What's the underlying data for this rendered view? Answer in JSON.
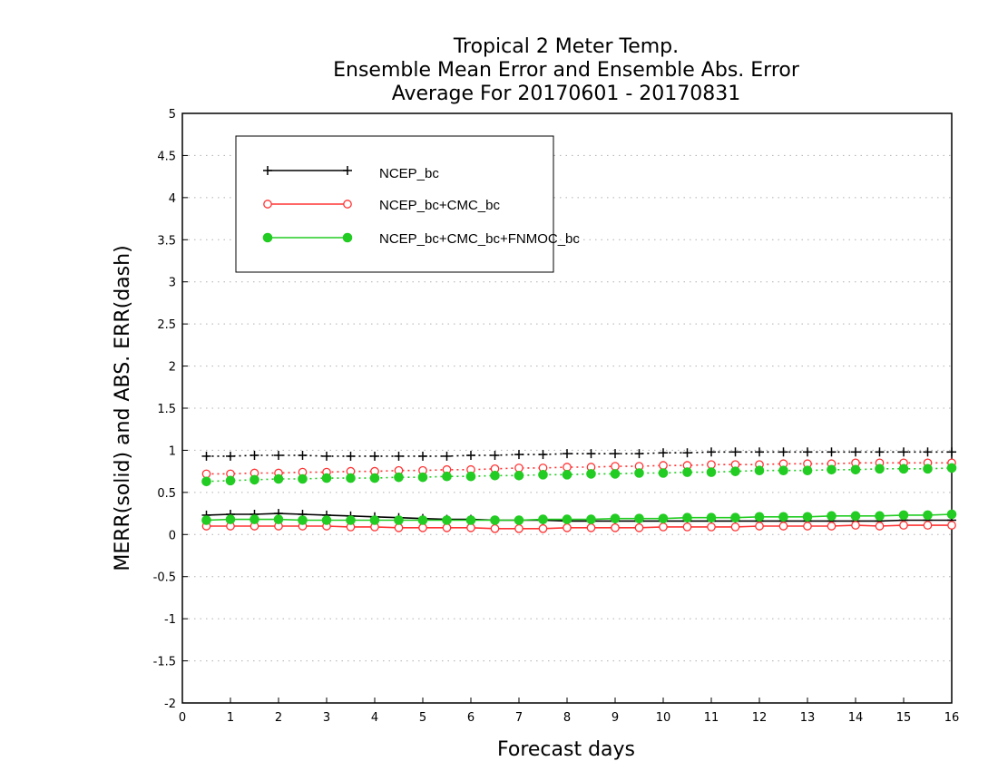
{
  "chart_data": {
    "type": "line",
    "title_lines": [
      "Tropical 2 Meter Temp.",
      "Ensemble Mean Error and Ensemble Abs. Error",
      "Average For 20170601 - 20170831"
    ],
    "xlabel": "Forecast days",
    "ylabel": "MERR(solid) and ABS. ERR(dash)",
    "xlim": [
      0,
      16
    ],
    "ylim": [
      -2,
      5
    ],
    "x_ticks": [
      "0",
      "1",
      "2",
      "3",
      "4",
      "5",
      "6",
      "7",
      "8",
      "9",
      "10",
      "11",
      "12",
      "13",
      "14",
      "15",
      "16"
    ],
    "y_ticks": [
      "-2",
      "-1.5",
      "-1",
      "-0.5",
      "0",
      "0.5",
      "1",
      "1.5",
      "2",
      "2.5",
      "3",
      "3.5",
      "4",
      "4.5",
      "5"
    ],
    "y_tick_values": [
      -2,
      -1.5,
      -1,
      -0.5,
      0,
      0.5,
      1,
      1.5,
      2,
      2.5,
      3,
      3.5,
      4,
      4.5,
      5
    ],
    "grid": true,
    "legend_position": "top-left",
    "x": [
      0.5,
      1,
      1.5,
      2,
      2.5,
      3,
      3.5,
      4,
      4.5,
      5,
      5.5,
      6,
      6.5,
      7,
      7.5,
      8,
      8.5,
      9,
      9.5,
      10,
      10.5,
      11,
      11.5,
      12,
      12.5,
      13,
      13.5,
      14,
      14.5,
      15,
      15.5,
      16
    ],
    "series": [
      {
        "name": "NCEP_bc",
        "color": "#000000",
        "marker": "plus",
        "merr": [
          0.23,
          0.24,
          0.24,
          0.25,
          0.24,
          0.23,
          0.22,
          0.21,
          0.2,
          0.19,
          0.18,
          0.18,
          0.17,
          0.17,
          0.17,
          0.16,
          0.16,
          0.16,
          0.16,
          0.16,
          0.16,
          0.16,
          0.16,
          0.16,
          0.16,
          0.16,
          0.16,
          0.16,
          0.16,
          0.17,
          0.17,
          0.17
        ],
        "abs_err": [
          0.93,
          0.93,
          0.94,
          0.94,
          0.94,
          0.93,
          0.93,
          0.93,
          0.93,
          0.93,
          0.93,
          0.94,
          0.94,
          0.95,
          0.95,
          0.96,
          0.96,
          0.96,
          0.96,
          0.97,
          0.97,
          0.98,
          0.98,
          0.98,
          0.98,
          0.98,
          0.98,
          0.98,
          0.98,
          0.98,
          0.98,
          0.98
        ]
      },
      {
        "name": "NCEP_bc+CMC_bc",
        "color": "#ff3333",
        "marker": "open-circle",
        "merr": [
          0.1,
          0.1,
          0.1,
          0.1,
          0.1,
          0.1,
          0.09,
          0.09,
          0.08,
          0.08,
          0.08,
          0.08,
          0.07,
          0.07,
          0.07,
          0.08,
          0.08,
          0.08,
          0.08,
          0.09,
          0.09,
          0.09,
          0.09,
          0.1,
          0.1,
          0.1,
          0.1,
          0.11,
          0.1,
          0.11,
          0.11,
          0.11
        ],
        "abs_err": [
          0.72,
          0.72,
          0.73,
          0.73,
          0.74,
          0.74,
          0.75,
          0.75,
          0.76,
          0.76,
          0.77,
          0.77,
          0.78,
          0.79,
          0.79,
          0.8,
          0.8,
          0.81,
          0.81,
          0.82,
          0.82,
          0.83,
          0.83,
          0.83,
          0.84,
          0.84,
          0.84,
          0.85,
          0.85,
          0.85,
          0.85,
          0.85
        ]
      },
      {
        "name": "NCEP_bc+CMC_bc+FNMOC_bc",
        "color": "#22cc22",
        "marker": "filled-circle",
        "merr": [
          0.17,
          0.18,
          0.18,
          0.18,
          0.17,
          0.17,
          0.17,
          0.17,
          0.17,
          0.17,
          0.17,
          0.17,
          0.17,
          0.17,
          0.18,
          0.18,
          0.18,
          0.19,
          0.19,
          0.19,
          0.2,
          0.2,
          0.2,
          0.21,
          0.21,
          0.21,
          0.22,
          0.22,
          0.22,
          0.23,
          0.23,
          0.24
        ],
        "abs_err": [
          0.63,
          0.64,
          0.65,
          0.66,
          0.66,
          0.67,
          0.67,
          0.67,
          0.68,
          0.68,
          0.69,
          0.69,
          0.7,
          0.7,
          0.71,
          0.71,
          0.72,
          0.72,
          0.73,
          0.73,
          0.74,
          0.74,
          0.75,
          0.76,
          0.76,
          0.76,
          0.77,
          0.77,
          0.78,
          0.78,
          0.78,
          0.79
        ]
      }
    ]
  }
}
